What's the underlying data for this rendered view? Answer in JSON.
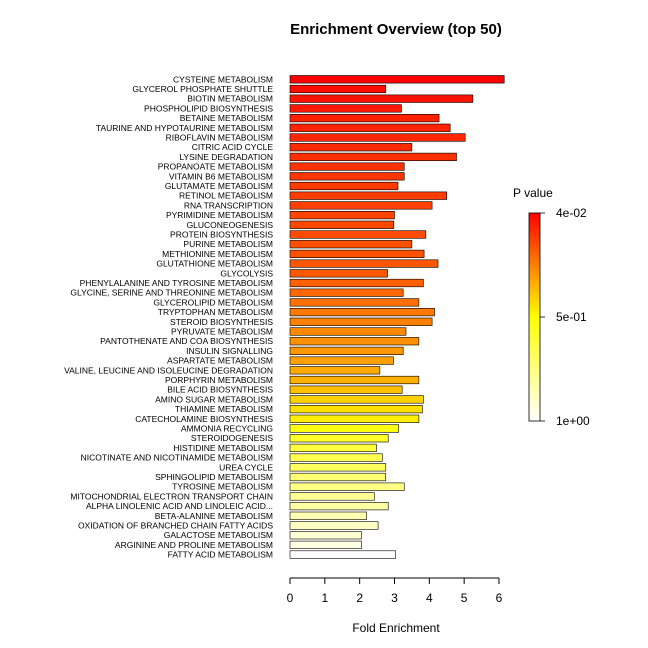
{
  "chart_data": {
    "type": "bar",
    "orientation": "horizontal",
    "title": "Enrichment Overview (top 50)",
    "xlabel": "Fold Enrichment",
    "ylabel": "",
    "xlim": [
      0,
      6
    ],
    "xticks": [
      "0",
      "1",
      "2",
      "3",
      "4",
      "5",
      "6"
    ],
    "legend": {
      "title": "P value",
      "labels": [
        "4e-02",
        "5e-01",
        "1e+00"
      ],
      "placement": "right",
      "colors": [
        "#ff0000",
        "#ffff00",
        "#ffffff"
      ]
    },
    "categories": [
      "CYSTEINE METABOLISM",
      "GLYCEROL PHOSPHATE SHUTTLE",
      "BIOTIN METABOLISM",
      "PHOSPHOLIPID BIOSYNTHESIS",
      "BETAINE METABOLISM",
      "TAURINE AND HYPOTAURINE METABOLISM",
      "RIBOFLAVIN METABOLISM",
      "CITRIC ACID CYCLE",
      "LYSINE DEGRADATION",
      "PROPANOATE METABOLISM",
      "VITAMIN B6 METABOLISM",
      "GLUTAMATE METABOLISM",
      "RETINOL METABOLISM",
      "RNA TRANSCRIPTION",
      "PYRIMIDINE METABOLISM",
      "GLUCONEOGENESIS",
      "PROTEIN BIOSYNTHESIS",
      "PURINE METABOLISM",
      "METHIONINE METABOLISM",
      "GLUTATHIONE METABOLISM",
      "GLYCOLYSIS",
      "PHENYLALANINE AND TYROSINE METABOLISM",
      "GLYCINE, SERINE AND THREONINE METABOLISM",
      "GLYCEROLIPID METABOLISM",
      "TRYPTOPHAN METABOLISM",
      "STEROID BIOSYNTHESIS",
      "PYRUVATE METABOLISM",
      "PANTOTHENATE AND COA BIOSYNTHESIS",
      "INSULIN SIGNALLING",
      "ASPARTATE METABOLISM",
      "VALINE, LEUCINE AND ISOLEUCINE DEGRADATION",
      "PORPHYRIN METABOLISM",
      "BILE ACID BIOSYNTHESIS",
      "AMINO SUGAR METABOLISM",
      "THIAMINE METABOLISM",
      "CATECHOLAMINE BIOSYNTHESIS",
      "AMMONIA RECYCLING",
      "STEROIDOGENESIS",
      "HISTIDINE METABOLISM",
      "NICOTINATE AND NICOTINAMIDE METABOLISM",
      "UREA CYCLE",
      "SPHINGOLIPID METABOLISM",
      "TYROSINE METABOLISM",
      "MITOCHONDRIAL ELECTRON TRANSPORT CHAIN",
      "ALPHA LINOLENIC ACID AND LINOLEIC ACID...",
      "BETA-ALANINE METABOLISM",
      "OXIDATION OF BRANCHED CHAIN FATTY ACIDS",
      "GALACTOSE METABOLISM",
      "ARGININE AND PROLINE METABOLISM",
      "FATTY ACID METABOLISM"
    ],
    "values": [
      6.15,
      2.75,
      5.25,
      3.2,
      4.28,
      4.6,
      5.03,
      3.5,
      4.78,
      3.28,
      3.28,
      3.1,
      4.5,
      4.08,
      3.0,
      2.98,
      3.9,
      3.5,
      3.85,
      4.25,
      2.8,
      3.83,
      3.25,
      3.7,
      4.15,
      4.08,
      3.33,
      3.7,
      3.25,
      2.97,
      2.58,
      3.7,
      3.22,
      3.83,
      3.8,
      3.7,
      3.12,
      2.82,
      2.48,
      2.65,
      2.75,
      2.75,
      3.28,
      2.42,
      2.82,
      2.2,
      2.53,
      2.05,
      2.05,
      3.03
    ],
    "colors": [
      "#ff0000",
      "#ff0b00",
      "#ff1200",
      "#ff1900",
      "#ff2000",
      "#ff2400",
      "#ff2700",
      "#ff2b00",
      "#ff2f00",
      "#ff3200",
      "#ff3600",
      "#ff3900",
      "#ff3d00",
      "#ff4100",
      "#ff4400",
      "#ff4700",
      "#ff4b00",
      "#ff4f00",
      "#ff5200",
      "#ff5600",
      "#ff5900",
      "#ff6000",
      "#ff6800",
      "#ff7000",
      "#ff7800",
      "#ff8000",
      "#ff8800",
      "#ff9000",
      "#ff9800",
      "#ffa000",
      "#ffa800",
      "#ffb000",
      "#ffc000",
      "#ffd000",
      "#ffe000",
      "#ffee00",
      "#ffff10",
      "#ffff2a",
      "#ffff3e",
      "#ffff50",
      "#ffff62",
      "#ffff74",
      "#ffff84",
      "#ffff94",
      "#ffffa4",
      "#ffffb4",
      "#ffffc4",
      "#ffffd4",
      "#ffffe6",
      "#ffffff"
    ]
  }
}
